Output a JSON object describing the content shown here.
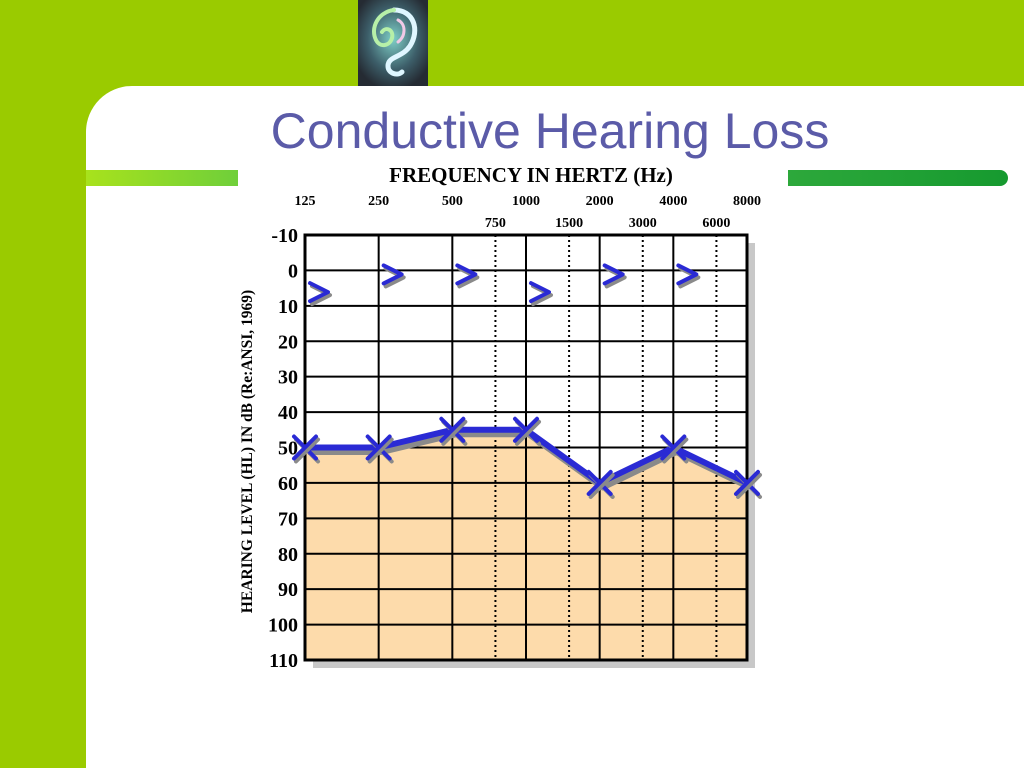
{
  "slide": {
    "title": "Conductive Hearing Loss"
  },
  "colors": {
    "background_green": "#9acb00",
    "title_color": "#5b5ba8",
    "series_color": "#2a2ad4",
    "loss_fill": "#fddbab"
  },
  "logo": {
    "icon": "ear-icon"
  },
  "chart_data": {
    "type": "line",
    "title": "FREQUENCY IN HERTZ (Hz)",
    "xlabel": "FREQUENCY IN HERTZ (Hz)",
    "ylabel": "HEARING LEVEL (HL) IN dB (Re:ANSI, 1969)",
    "x_ticks_major": [
      "125",
      "250",
      "500",
      "1000",
      "2000",
      "4000",
      "8000"
    ],
    "x_ticks_minor": [
      "750",
      "1500",
      "3000",
      "6000"
    ],
    "y_ticks": [
      "-10",
      "0",
      "10",
      "20",
      "30",
      "40",
      "50",
      "60",
      "70",
      "80",
      "90",
      "100",
      "110"
    ],
    "ylim": [
      -10,
      110
    ],
    "y_inverted": true,
    "grid": true,
    "series": [
      {
        "marker": "x",
        "x": [
          125,
          250,
          500,
          1000,
          2000,
          4000,
          8000
        ],
        "y": [
          50,
          50,
          45,
          45,
          60,
          50,
          60
        ]
      },
      {
        "marker": ">",
        "x": [
          125,
          250,
          500,
          1000,
          2000,
          4000
        ],
        "y": [
          5,
          0,
          0,
          5,
          0,
          0
        ]
      }
    ]
  }
}
